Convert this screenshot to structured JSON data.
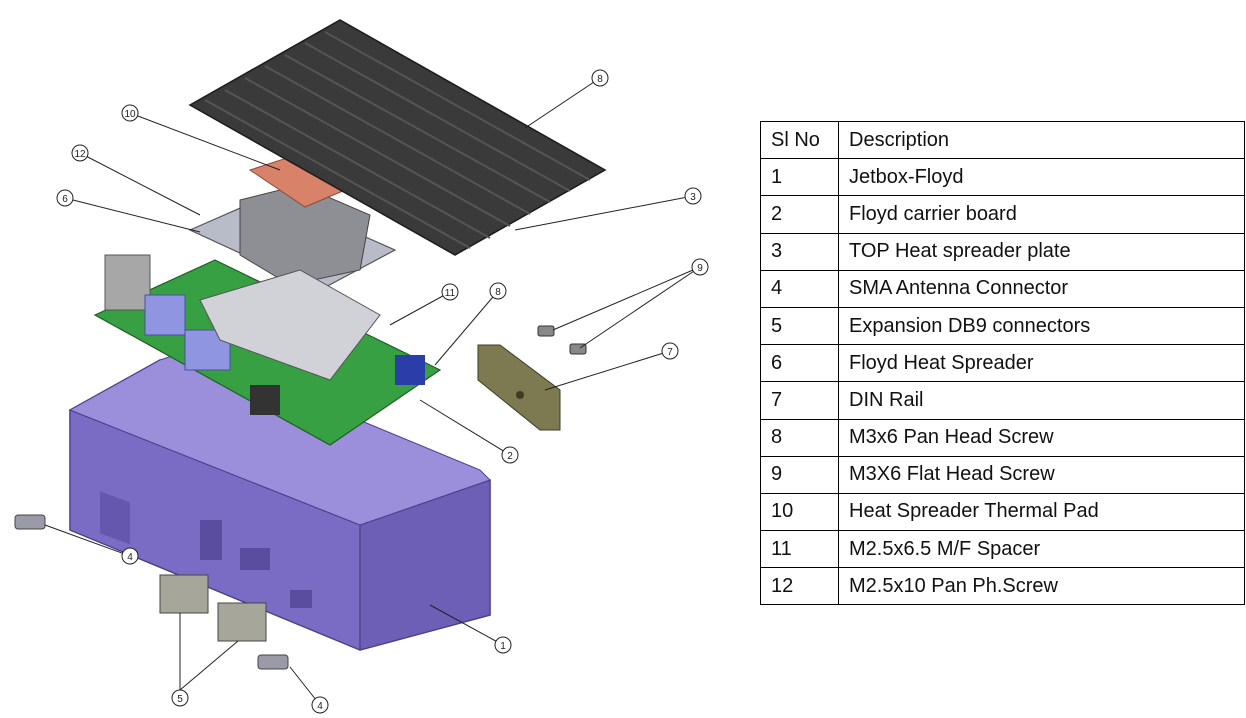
{
  "table": {
    "headers": {
      "no": "Sl No",
      "description": "Description"
    },
    "rows": [
      {
        "no": "1",
        "description": "Jetbox-Floyd"
      },
      {
        "no": "2",
        "description": "Floyd carrier board"
      },
      {
        "no": "3",
        "description": "TOP Heat spreader plate"
      },
      {
        "no": "4",
        "description": "SMA Antenna Connector"
      },
      {
        "no": "5",
        "description": "Expansion DB9 connectors"
      },
      {
        "no": "6",
        "description": "Floyd Heat Spreader"
      },
      {
        "no": "7",
        "description": "DIN Rail"
      },
      {
        "no": "8",
        "description": "M3x6 Pan Head Screw"
      },
      {
        "no": "9",
        "description": "M3X6 Flat Head Screw"
      },
      {
        "no": "10",
        "description": "Heat Spreader Thermal Pad"
      },
      {
        "no": "11",
        "description": "M2.5x6.5 M/F Spacer"
      },
      {
        "no": "12",
        "description": "M2.5x10 Pan Ph.Screw"
      }
    ]
  },
  "callouts": [
    "8",
    "10",
    "12",
    "6",
    "3",
    "9",
    "11",
    "8",
    "7",
    "2",
    "4",
    "1",
    "5",
    "4"
  ],
  "colors": {
    "enclosure": "#7f71c9",
    "heatsink": "#3a3a3a",
    "pcb": "#2f8f3a",
    "thermal_pad": "#d9826a",
    "heat_spreader": "#b8bcc8",
    "din_rail": "#7d7a52"
  }
}
